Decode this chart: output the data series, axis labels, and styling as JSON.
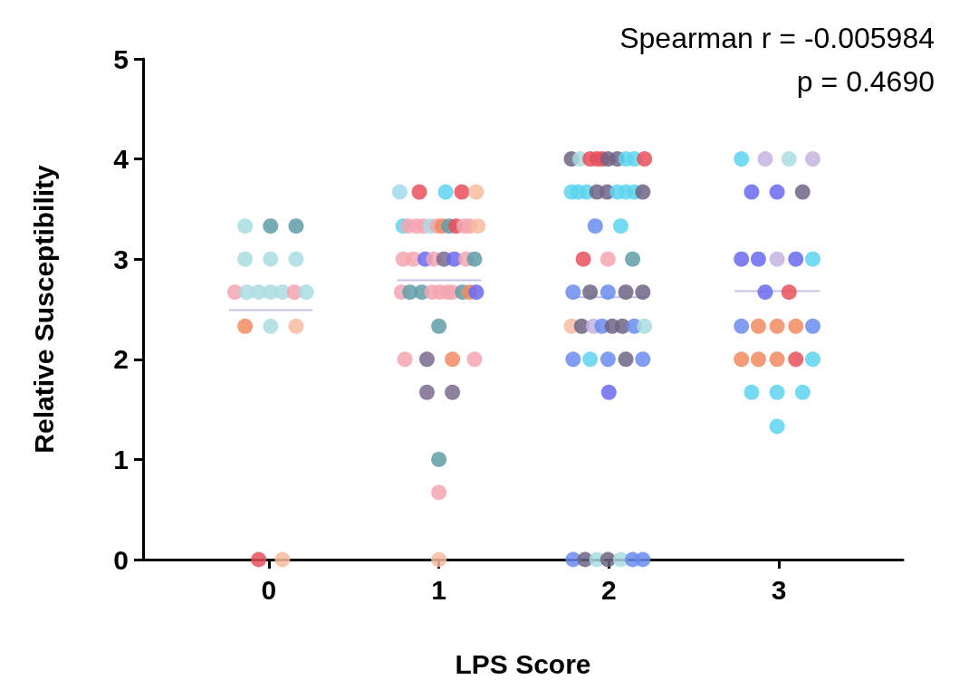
{
  "chart_data": {
    "type": "scatter",
    "xlabel": "LPS Score",
    "ylabel": "Relative Susceptibility",
    "annotations": [
      "Spearman r = -0.005984",
      "p = 0.4690"
    ],
    "xlim": [
      -0.74,
      3.73
    ],
    "xticks": [
      0,
      1,
      2,
      3
    ],
    "ylim": [
      0,
      5
    ],
    "yticks": [
      0,
      1,
      2,
      3,
      4,
      5
    ],
    "grid": false,
    "marker": "circle",
    "series": [
      {
        "x": [
          -0.14,
          0.01,
          0.16,
          -0.14,
          0.01,
          0.16,
          -0.2,
          -0.13,
          -0.06,
          0.01,
          0.08,
          0.15,
          0.22,
          -0.14,
          0.01,
          0.16,
          -0.06,
          0.08,
          0.77,
          0.885,
          1.04,
          1.135,
          1.22,
          0.79,
          0.82,
          0.87,
          0.91,
          0.95,
          0.99,
          1.02,
          1.06,
          1.1,
          1.15,
          1.18,
          1.23,
          0.79,
          0.85,
          0.92,
          0.97,
          1.03,
          1.09,
          1.16,
          1.21,
          0.78,
          0.83,
          0.9,
          0.96,
          1.005,
          1.05,
          1.08,
          1.14,
          1.18,
          1.22,
          1,
          0.8,
          0.93,
          1.08,
          1.21,
          0.93,
          1.08,
          1,
          1,
          1,
          1.78,
          1.83,
          1.89,
          1.93,
          1.96,
          1.995,
          2.05,
          2.1,
          2.15,
          2.21,
          1.78,
          1.82,
          1.87,
          1.93,
          1.99,
          2.05,
          2.1,
          2.15,
          2.2,
          1.92,
          2.07,
          1.85,
          1.995,
          2.14,
          1.79,
          1.89,
          1.995,
          2.1,
          2.2,
          1.78,
          1.84,
          1.91,
          1.96,
          2.02,
          2.08,
          2.15,
          2.21,
          1.79,
          1.89,
          1.995,
          2.1,
          2.2,
          2,
          1.79,
          1.86,
          1.93,
          1.995,
          2.07,
          2.14,
          2.2,
          2.78,
          2.92,
          3.06,
          3.2,
          2.84,
          2.99,
          3.14,
          2.78,
          2.88,
          2.99,
          3.1,
          3.2,
          2.92,
          3.06,
          2.78,
          2.88,
          2.99,
          3.1,
          3.2,
          2.78,
          2.88,
          2.99,
          3.1,
          3.2,
          2.84,
          2.99,
          3.14,
          2.99
        ],
        "values": [
          3.33,
          3.33,
          3.33,
          3,
          3,
          3,
          2.67,
          2.67,
          2.67,
          2.67,
          2.67,
          2.67,
          2.67,
          2.33,
          2.33,
          2.33,
          0,
          0,
          3.67,
          3.67,
          3.67,
          3.67,
          3.67,
          3.33,
          3.33,
          3.33,
          3.33,
          3.33,
          3.33,
          3.33,
          3.33,
          3.33,
          3.33,
          3.33,
          3.33,
          3,
          3,
          3,
          3,
          3,
          3,
          3,
          3,
          2.67,
          2.67,
          2.67,
          2.67,
          2.67,
          2.67,
          2.67,
          2.67,
          2.67,
          2.67,
          2.33,
          2,
          2,
          2,
          2,
          1.67,
          1.67,
          1,
          0.67,
          0,
          4,
          4,
          4,
          4,
          4,
          4,
          4,
          4,
          4,
          4,
          3.67,
          3.67,
          3.67,
          3.67,
          3.67,
          3.67,
          3.67,
          3.67,
          3.67,
          3.33,
          3.33,
          3,
          3,
          3,
          2.67,
          2.67,
          2.67,
          2.67,
          2.67,
          2.33,
          2.33,
          2.33,
          2.33,
          2.33,
          2.33,
          2.33,
          2.33,
          2,
          2,
          2,
          2,
          2,
          1.67,
          0,
          0,
          0,
          0,
          0,
          0,
          0,
          4,
          4,
          4,
          4,
          3.67,
          3.67,
          3.67,
          3,
          3,
          3,
          3,
          3,
          2.67,
          2.67,
          2.33,
          2.33,
          2.33,
          2.33,
          2.33,
          2,
          2,
          2,
          2,
          2,
          1.67,
          1.67,
          1.67,
          1.33
        ],
        "colors": [
          "#a9dde0",
          "#5f9ea8",
          "#5f9ea8",
          "#a9dde0",
          "#a9dde0",
          "#a9dde0",
          "#f4a6b0",
          "#a9dde0",
          "#a9dde0",
          "#a9dde0",
          "#a9dde0",
          "#f4a6b0",
          "#a9dde0",
          "#f28a60",
          "#a9dde0",
          "#f7bca0",
          "#e8505b",
          "#f7bca0",
          "#9fd9ea",
          "#e8505b",
          "#5dd3f0",
          "#e8505b",
          "#f7bca0",
          "#5dd3f0",
          "#f4a6b0",
          "#f4a6b0",
          "#f4a6b0",
          "#a9dde0",
          "#f4a6b0",
          "#f28a60",
          "#5f9ea8",
          "#e8505b",
          "#f4a6b0",
          "#f4a6b0",
          "#f7bca0",
          "#f4a6b0",
          "#f4a6b0",
          "#6a6af0",
          "#f4a6b0",
          "#7a6a8e",
          "#6a6af0",
          "#f4a6b0",
          "#5f9ea8",
          "#f4a6b0",
          "#5f9ea8",
          "#5f9ea8",
          "#f4a6b0",
          "#f4a6b0",
          "#f4a6b0",
          "#f4a6b0",
          "#5f9ea8",
          "#f28a60",
          "#6a6af0",
          "#5f9ea8",
          "#f4a6b0",
          "#7a6a8e",
          "#f28a60",
          "#f4a6b0",
          "#7a6a8e",
          "#7a6a8e",
          "#5f9ea8",
          "#f4a6b0",
          "#f7bca0",
          "#6e6485",
          "#a9dde0",
          "#e8505b",
          "#e8505b",
          "#e8505b",
          "#6e6485",
          "#6e6485",
          "#5dd3f0",
          "#5dd3f0",
          "#e8505b",
          "#5dd3f0",
          "#5dd3f0",
          "#5dd3f0",
          "#6e6485",
          "#6e6485",
          "#5dd3f0",
          "#5dd3f0",
          "#5dd3f0",
          "#6e6485",
          "#6b8cf0",
          "#5dd3f0",
          "#e8505b",
          "#f4a6b0",
          "#5f9ea8",
          "#6b8cf0",
          "#6e6485",
          "#6b8cf0",
          "#6e6485",
          "#6e6485",
          "#f7bca0",
          "#6e6485",
          "#c4b4e0",
          "#6b8cf0",
          "#6e6485",
          "#6e6485",
          "#6b8cf0",
          "#a9dde0",
          "#6b8cf0",
          "#5dd3f0",
          "#6b8cf0",
          "#6e6485",
          "#6b8cf0",
          "#6a6af0",
          "#6b8cf0",
          "#6e6485",
          "#a9dde0",
          "#6e6485",
          "#a9dde0",
          "#6b8cf0",
          "#6b8cf0",
          "#5dd3f0",
          "#c4b4e0",
          "#a9dde0",
          "#c4b4e0",
          "#6a6af0",
          "#6a6af0",
          "#6e6485",
          "#6a6af0",
          "#6a6af0",
          "#c4b4e0",
          "#6a6af0",
          "#5dd3f0",
          "#6a6af0",
          "#e8505b",
          "#6b8cf0",
          "#f28a60",
          "#f28a60",
          "#f28a60",
          "#6b8cf0",
          "#f28a60",
          "#f28a60",
          "#f28a60",
          "#e8505b",
          "#5dd3f0",
          "#5dd3f0",
          "#5dd3f0",
          "#5dd3f0",
          "#5dd3f0"
        ]
      },
      {
        "type": "line",
        "x": [
          -0.235,
          0.256
        ],
        "values": [
          2.49,
          2.49
        ],
        "color": "#c8c0e8",
        "marker": "none"
      },
      {
        "type": "line",
        "x": [
          0.755,
          1.25
        ],
        "values": [
          2.79,
          2.79
        ],
        "color": "#c8c0e8",
        "marker": "none"
      },
      {
        "type": "line",
        "x": [
          1.78,
          2.22
        ],
        "values": [
          2.62,
          2.62
        ],
        "color": "#c8c0e8",
        "marker": "none"
      },
      {
        "type": "line",
        "x": [
          2.74,
          3.24
        ],
        "values": [
          2.68,
          2.68
        ],
        "color": "#c8c0e8",
        "marker": "none"
      }
    ]
  }
}
